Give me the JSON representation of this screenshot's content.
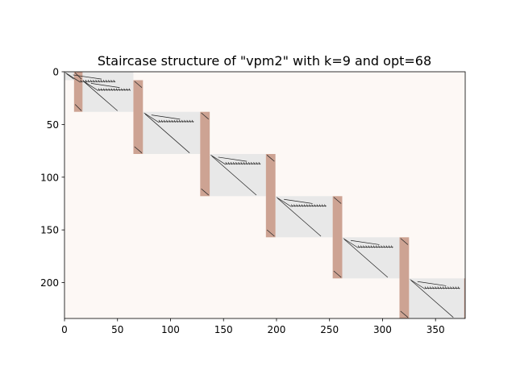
{
  "chart_data": {
    "type": "heatmap",
    "title": "Staircase structure of \"vpm2\" with k=9 and opt=68",
    "xlabel": "",
    "ylabel": "",
    "xlim": [
      0,
      378
    ],
    "ylim": [
      234,
      0
    ],
    "x_ticks": [
      0,
      50,
      100,
      150,
      200,
      250,
      300,
      350
    ],
    "y_ticks": [
      0,
      50,
      100,
      150,
      200
    ],
    "grid": false,
    "colors": {
      "background": "#fdf8f5",
      "block": "#e8e8e8",
      "linking": "#cda393",
      "nonzero": "#222222"
    },
    "blocks": [
      {
        "x": [
          0,
          65
        ],
        "y": [
          0,
          8
        ]
      },
      {
        "x": [
          17,
          65
        ],
        "y": [
          8,
          38
        ]
      },
      {
        "x": [
          74,
          128
        ],
        "y": [
          38,
          78
        ]
      },
      {
        "x": [
          137,
          190
        ],
        "y": [
          78,
          118
        ]
      },
      {
        "x": [
          199,
          253
        ],
        "y": [
          118,
          157
        ]
      },
      {
        "x": [
          262,
          316
        ],
        "y": [
          157,
          196
        ]
      },
      {
        "x": [
          325,
          378
        ],
        "y": [
          196,
          234
        ]
      }
    ],
    "linking_columns": [
      {
        "x": [
          9,
          17
        ],
        "y": [
          0,
          38
        ]
      },
      {
        "x": [
          65,
          74
        ],
        "y": [
          8,
          78
        ]
      },
      {
        "x": [
          128,
          137
        ],
        "y": [
          38,
          118
        ]
      },
      {
        "x": [
          190,
          199
        ],
        "y": [
          78,
          157
        ]
      },
      {
        "x": [
          253,
          262
        ],
        "y": [
          118,
          196
        ]
      },
      {
        "x": [
          316,
          325
        ],
        "y": [
          157,
          234
        ]
      },
      {
        "x": [
          377,
          378
        ],
        "y": [
          196,
          234
        ]
      }
    ]
  }
}
